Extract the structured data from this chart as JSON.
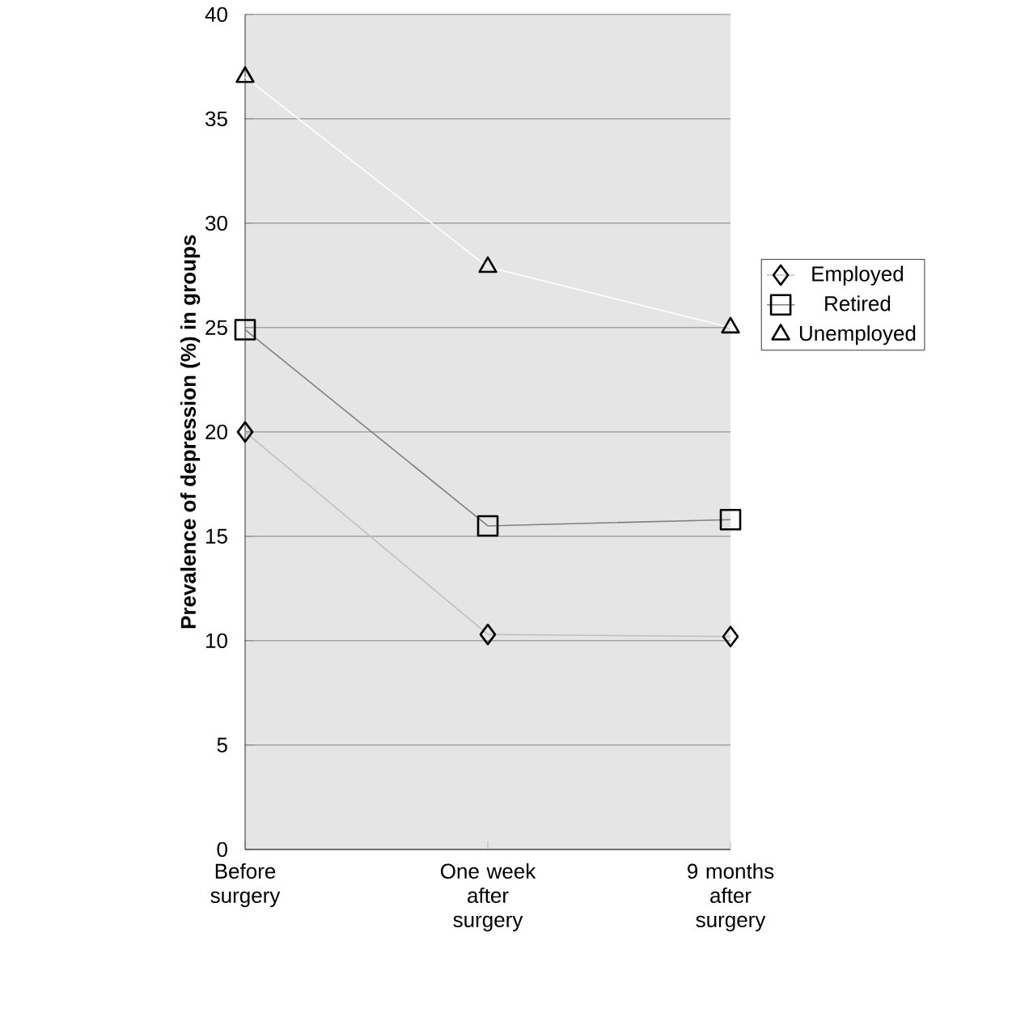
{
  "chart_data": {
    "type": "line",
    "ylabel": "Prevalence of depression (%) in groups",
    "categories": [
      "Before surgery",
      "One week after surgery",
      "9 months after surgery"
    ],
    "series": [
      {
        "name": "Employed",
        "color": "#c0c0c0",
        "marker": "diamond",
        "values": [
          20,
          10.3,
          10.2
        ]
      },
      {
        "name": "Retired",
        "color": "#808080",
        "marker": "square",
        "values": [
          24.9,
          15.5,
          15.8
        ]
      },
      {
        "name": "Unemployed",
        "color": "#ffffff",
        "marker": "triangle",
        "values": [
          37,
          27.9,
          25
        ]
      }
    ],
    "ylim": [
      0,
      40
    ],
    "yticks": [
      0,
      5,
      10,
      15,
      20,
      25,
      30,
      35,
      40
    ],
    "grid": "y",
    "legend": "right"
  }
}
